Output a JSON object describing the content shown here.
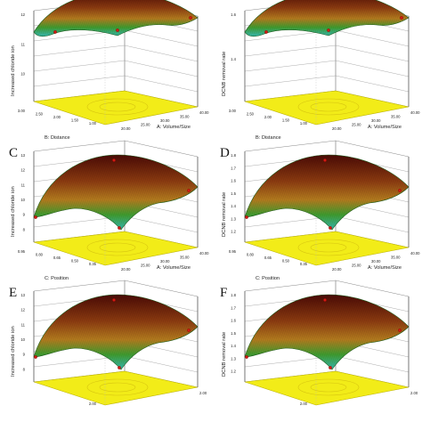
{
  "panels": [
    {
      "letter": "",
      "zlabel": "Increased chloride ion",
      "xlabel": "A: Volume/Size",
      "ylabel": "B: Distance",
      "zticks": [
        "12",
        "11",
        "10"
      ],
      "xticks": [
        "40.00",
        "35.00",
        "30.00",
        "25.00",
        "20.00"
      ],
      "yticks": [
        "3.00",
        "2.50",
        "2.00",
        "1.50",
        "1.00"
      ]
    },
    {
      "letter": "",
      "zlabel": "DCNB removal rate",
      "xlabel": "A: Volume/Size",
      "ylabel": "B: Distance",
      "zticks": [
        "1.6",
        "1.4"
      ],
      "xticks": [
        "40.00",
        "35.00",
        "30.00",
        "25.00",
        "20.00"
      ],
      "yticks": [
        "3.00",
        "2.50",
        "2.00",
        "1.50",
        "1.00"
      ]
    },
    {
      "letter": "C",
      "zlabel": "Increased chloride ion",
      "xlabel": "A: Volume/Size",
      "ylabel": "C: Position",
      "zticks": [
        "13",
        "12",
        "11",
        "10",
        "9",
        "8"
      ],
      "xticks": [
        "40.00",
        "35.00",
        "30.00",
        "25.00",
        "20.00"
      ],
      "yticks": [
        "0.95",
        "0.80",
        "0.65",
        "0.50",
        "0.35"
      ]
    },
    {
      "letter": "D",
      "zlabel": "DCNB removal rate",
      "xlabel": "A: Volume/Size",
      "ylabel": "C: Position",
      "zticks": [
        "1.8",
        "1.7",
        "1.6",
        "1.5",
        "1.4",
        "1.3",
        "1.2"
      ],
      "xticks": [
        "40.00",
        "35.00",
        "30.00",
        "25.00",
        "20.00"
      ],
      "yticks": [
        "0.95",
        "0.80",
        "0.65",
        "0.50",
        "0.35"
      ]
    },
    {
      "letter": "E",
      "zlabel": "Increased chloride ion",
      "xlabel": "",
      "ylabel": "",
      "zticks": [
        "13",
        "12",
        "11",
        "10",
        "9",
        "8"
      ],
      "xticks": [
        "2.00",
        "",
        "",
        "",
        ""
      ],
      "yticks": [
        "",
        "",
        "",
        "",
        "2.00"
      ]
    },
    {
      "letter": "F",
      "zlabel": "DCNB removal rate",
      "xlabel": "",
      "ylabel": "",
      "zticks": [
        "1.8",
        "1.7",
        "1.6",
        "1.5",
        "1.4",
        "1.3",
        "1.2"
      ],
      "xticks": [
        "2.00",
        "",
        "",
        "",
        ""
      ],
      "yticks": [
        "",
        "",
        "",
        "",
        "2.00"
      ]
    }
  ],
  "colors": {
    "surface_top": "#5a0d06",
    "surface_mid": "#b0651c",
    "surface_low": "#2f8a2a",
    "surface_edge": "#37b8a8",
    "floor": "#f2ec18",
    "floor_contour": "#d6c410",
    "point": "#d21a12",
    "grid": "#888888"
  }
}
